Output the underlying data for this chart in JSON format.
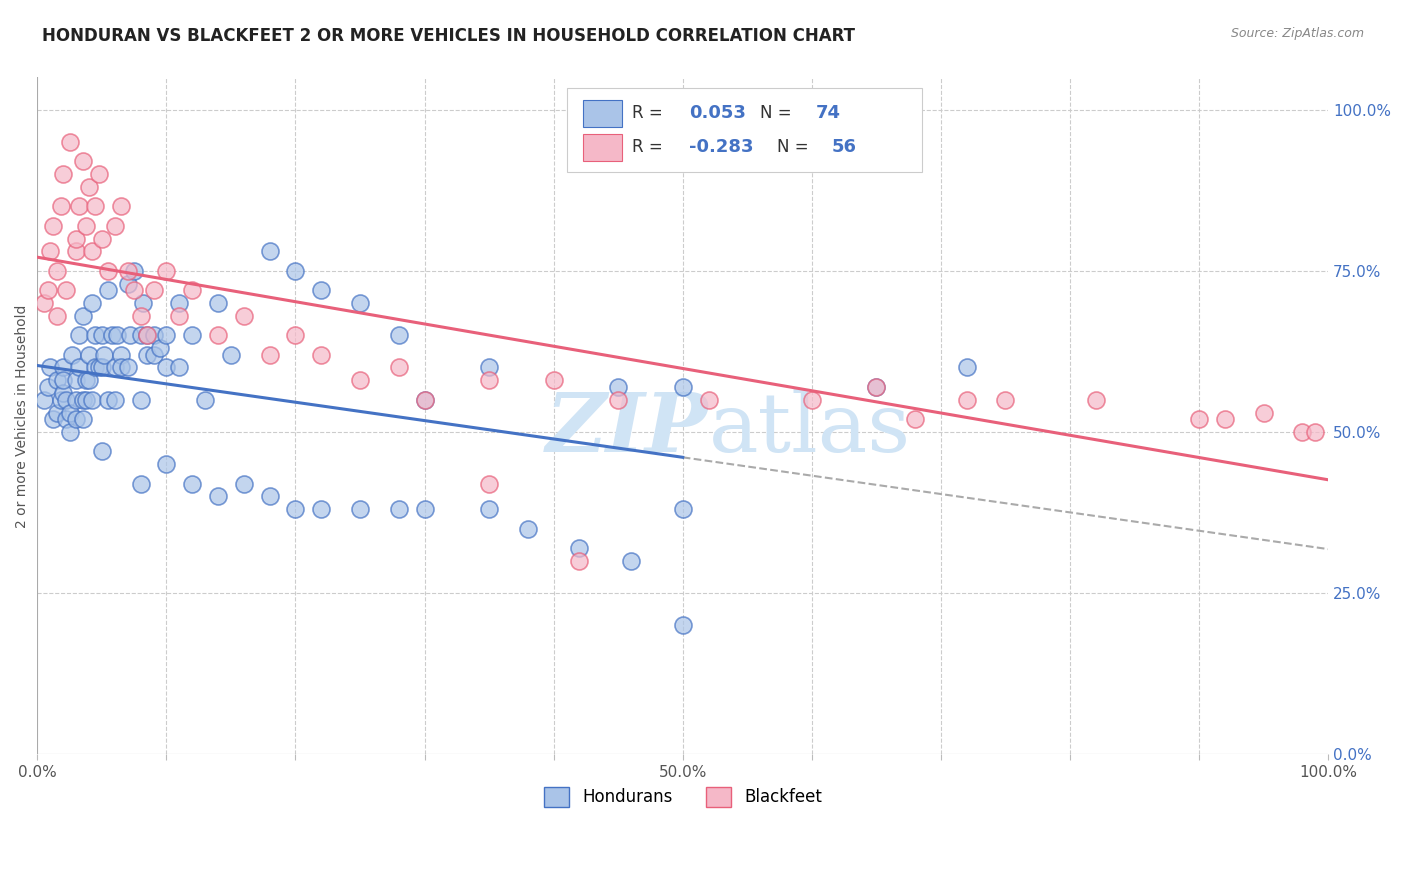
{
  "title": "HONDURAN VS BLACKFEET 2 OR MORE VEHICLES IN HOUSEHOLD CORRELATION CHART",
  "source_text": "Source: ZipAtlas.com",
  "ylabel": "2 or more Vehicles in Household",
  "honduran_R": 0.053,
  "honduran_N": 74,
  "blackfeet_R": -0.283,
  "blackfeet_N": 56,
  "honduran_color": "#aac4e8",
  "blackfeet_color": "#f5b8c8",
  "honduran_line_color": "#4472c4",
  "blackfeet_line_color": "#e8607a",
  "watermark_color": "#d0e4f5",
  "title_fontsize": 12,
  "right_ytick_color": "#4472c4",
  "yticks_right": [
    0.0,
    0.25,
    0.5,
    0.75,
    1.0
  ],
  "ytick_labels_right": [
    "0.0%",
    "25.0%",
    "50.0%",
    "75.0%",
    "100.0%"
  ],
  "xticks": [
    0.0,
    0.1,
    0.2,
    0.3,
    0.4,
    0.5,
    0.6,
    0.7,
    0.8,
    0.9,
    1.0
  ],
  "xtick_labels": [
    "0.0%",
    "",
    "",
    "",
    "",
    "50.0%",
    "",
    "",
    "",
    "",
    "100.0%"
  ],
  "honduran_x": [
    0.005,
    0.008,
    0.01,
    0.012,
    0.015,
    0.015,
    0.018,
    0.02,
    0.02,
    0.02,
    0.022,
    0.022,
    0.025,
    0.025,
    0.027,
    0.03,
    0.03,
    0.03,
    0.032,
    0.032,
    0.035,
    0.035,
    0.035,
    0.038,
    0.038,
    0.04,
    0.04,
    0.042,
    0.042,
    0.045,
    0.045,
    0.048,
    0.05,
    0.05,
    0.052,
    0.055,
    0.055,
    0.058,
    0.06,
    0.06,
    0.062,
    0.065,
    0.065,
    0.07,
    0.07,
    0.072,
    0.075,
    0.08,
    0.08,
    0.082,
    0.085,
    0.085,
    0.09,
    0.09,
    0.095,
    0.1,
    0.1,
    0.11,
    0.11,
    0.12,
    0.13,
    0.14,
    0.15,
    0.18,
    0.2,
    0.22,
    0.25,
    0.28,
    0.3,
    0.35,
    0.45,
    0.5,
    0.65,
    0.72
  ],
  "honduran_y": [
    0.55,
    0.57,
    0.6,
    0.52,
    0.58,
    0.53,
    0.55,
    0.56,
    0.6,
    0.58,
    0.55,
    0.52,
    0.5,
    0.53,
    0.62,
    0.58,
    0.55,
    0.52,
    0.6,
    0.65,
    0.55,
    0.52,
    0.68,
    0.58,
    0.55,
    0.62,
    0.58,
    0.55,
    0.7,
    0.65,
    0.6,
    0.6,
    0.6,
    0.65,
    0.62,
    0.55,
    0.72,
    0.65,
    0.6,
    0.55,
    0.65,
    0.62,
    0.6,
    0.6,
    0.73,
    0.65,
    0.75,
    0.55,
    0.65,
    0.7,
    0.62,
    0.65,
    0.62,
    0.65,
    0.63,
    0.6,
    0.65,
    0.6,
    0.7,
    0.65,
    0.55,
    0.7,
    0.62,
    0.78,
    0.75,
    0.72,
    0.7,
    0.65,
    0.55,
    0.6,
    0.57,
    0.57,
    0.57,
    0.6
  ],
  "honduran_low_x": [
    0.05,
    0.08,
    0.1,
    0.12,
    0.14,
    0.16,
    0.18,
    0.2,
    0.22,
    0.25,
    0.28,
    0.3,
    0.35,
    0.38,
    0.42,
    0.46,
    0.5,
    0.5
  ],
  "honduran_low_y": [
    0.47,
    0.42,
    0.45,
    0.42,
    0.4,
    0.42,
    0.4,
    0.38,
    0.38,
    0.38,
    0.38,
    0.38,
    0.38,
    0.35,
    0.32,
    0.3,
    0.2,
    0.38
  ],
  "blackfeet_x": [
    0.005,
    0.008,
    0.01,
    0.012,
    0.015,
    0.015,
    0.018,
    0.02,
    0.022,
    0.025,
    0.03,
    0.03,
    0.032,
    0.035,
    0.038,
    0.04,
    0.042,
    0.045,
    0.048,
    0.05,
    0.055,
    0.06,
    0.065,
    0.07,
    0.075,
    0.08,
    0.085,
    0.09,
    0.1,
    0.11,
    0.12,
    0.14,
    0.16,
    0.18,
    0.2,
    0.22,
    0.25,
    0.28,
    0.3,
    0.35,
    0.4,
    0.45,
    0.52,
    0.6,
    0.65,
    0.68,
    0.72,
    0.75,
    0.82,
    0.9,
    0.92,
    0.95,
    0.98,
    0.99,
    0.35,
    0.42
  ],
  "blackfeet_y": [
    0.7,
    0.72,
    0.78,
    0.82,
    0.68,
    0.75,
    0.85,
    0.9,
    0.72,
    0.95,
    0.78,
    0.8,
    0.85,
    0.92,
    0.82,
    0.88,
    0.78,
    0.85,
    0.9,
    0.8,
    0.75,
    0.82,
    0.85,
    0.75,
    0.72,
    0.68,
    0.65,
    0.72,
    0.75,
    0.68,
    0.72,
    0.65,
    0.68,
    0.62,
    0.65,
    0.62,
    0.58,
    0.6,
    0.55,
    0.58,
    0.58,
    0.55,
    0.55,
    0.55,
    0.57,
    0.52,
    0.55,
    0.55,
    0.55,
    0.52,
    0.52,
    0.53,
    0.5,
    0.5,
    0.42,
    0.3
  ],
  "xlim": [
    0.0,
    1.0
  ],
  "ylim": [
    0.0,
    1.05
  ],
  "background_color": "#ffffff"
}
